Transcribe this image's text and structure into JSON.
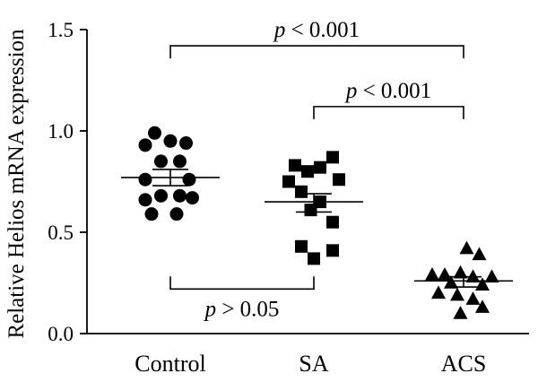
{
  "chart_data": {
    "type": "scatter",
    "ylabel": "Relative Helios mRNA expression",
    "ylim": [
      0,
      1.5
    ],
    "yticks": [
      0.0,
      0.5,
      1.0,
      1.5
    ],
    "ytick_labels": [
      "0.0",
      "0.5",
      "1.0",
      "1.5"
    ],
    "categories": [
      "Control",
      "SA",
      "ACS"
    ],
    "grid": false,
    "legend": "none",
    "series": [
      {
        "category": "Control",
        "marker": "circle",
        "mean": 0.77,
        "sem_low": 0.73,
        "sem_high": 0.81,
        "points": [
          {
            "x": -0.25,
            "y": 0.99
          },
          {
            "x": -0.4,
            "y": 0.93
          },
          {
            "x": 0.0,
            "y": 0.95
          },
          {
            "x": 0.25,
            "y": 0.94
          },
          {
            "x": -0.15,
            "y": 0.85
          },
          {
            "x": 0.15,
            "y": 0.85
          },
          {
            "x": -0.4,
            "y": 0.76
          },
          {
            "x": 0.3,
            "y": 0.76
          },
          {
            "x": -0.4,
            "y": 0.66
          },
          {
            "x": -0.15,
            "y": 0.68
          },
          {
            "x": 0.15,
            "y": 0.68
          },
          {
            "x": 0.35,
            "y": 0.67
          },
          {
            "x": -0.3,
            "y": 0.59
          },
          {
            "x": 0.1,
            "y": 0.59
          }
        ]
      },
      {
        "category": "SA",
        "marker": "square",
        "mean": 0.65,
        "sem_low": 0.6,
        "sem_high": 0.69,
        "points": [
          {
            "x": 0.3,
            "y": 0.87
          },
          {
            "x": -0.3,
            "y": 0.83
          },
          {
            "x": 0.1,
            "y": 0.82
          },
          {
            "x": -0.1,
            "y": 0.8
          },
          {
            "x": -0.4,
            "y": 0.75
          },
          {
            "x": 0.4,
            "y": 0.76
          },
          {
            "x": -0.2,
            "y": 0.7
          },
          {
            "x": 0.1,
            "y": 0.65
          },
          {
            "x": -0.05,
            "y": 0.61
          },
          {
            "x": 0.3,
            "y": 0.55
          },
          {
            "x": -0.2,
            "y": 0.43
          },
          {
            "x": 0.3,
            "y": 0.41
          },
          {
            "x": 0.0,
            "y": 0.37
          }
        ]
      },
      {
        "category": "ACS",
        "marker": "triangle",
        "mean": 0.26,
        "sem_low": 0.23,
        "sem_high": 0.28,
        "points": [
          {
            "x": 0.05,
            "y": 0.42
          },
          {
            "x": 0.25,
            "y": 0.39
          },
          {
            "x": -0.5,
            "y": 0.29
          },
          {
            "x": -0.3,
            "y": 0.29
          },
          {
            "x": -0.05,
            "y": 0.3
          },
          {
            "x": 0.15,
            "y": 0.28
          },
          {
            "x": 0.45,
            "y": 0.28
          },
          {
            "x": -0.2,
            "y": 0.25
          },
          {
            "x": 0.3,
            "y": 0.24
          },
          {
            "x": -0.4,
            "y": 0.2
          },
          {
            "x": -0.1,
            "y": 0.19
          },
          {
            "x": 0.15,
            "y": 0.17
          },
          {
            "x": 0.3,
            "y": 0.13
          },
          {
            "x": -0.05,
            "y": 0.1
          }
        ]
      }
    ],
    "annotations": [
      {
        "label": "p < 0.001",
        "from": "Control",
        "to": "ACS",
        "y": 1.42,
        "side": "top"
      },
      {
        "label": "p < 0.001",
        "from": "SA",
        "to": "ACS",
        "y": 1.12,
        "side": "top"
      },
      {
        "label": "p > 0.05",
        "from": "Control",
        "to": "SA",
        "y": 0.22,
        "side": "bottom"
      }
    ]
  }
}
